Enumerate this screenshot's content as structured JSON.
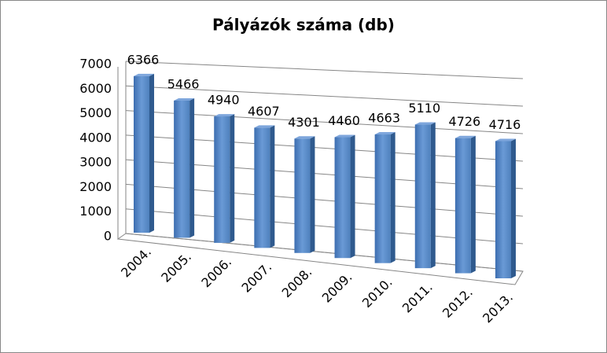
{
  "chart_data": {
    "type": "bar",
    "title": "Pályázók száma (db)",
    "categories": [
      "2004.",
      "2005.",
      "2006.",
      "2007.",
      "2008.",
      "2009.",
      "2010.",
      "2011.",
      "2012.",
      "2013."
    ],
    "values": [
      6366,
      5466,
      4940,
      4607,
      4301,
      4460,
      4663,
      5110,
      4726,
      4716
    ],
    "color": "#4f81bd",
    "ylim": [
      0,
      7000
    ],
    "yticks": [
      0,
      1000,
      2000,
      3000,
      4000,
      5000,
      6000,
      7000
    ],
    "grid": true
  }
}
